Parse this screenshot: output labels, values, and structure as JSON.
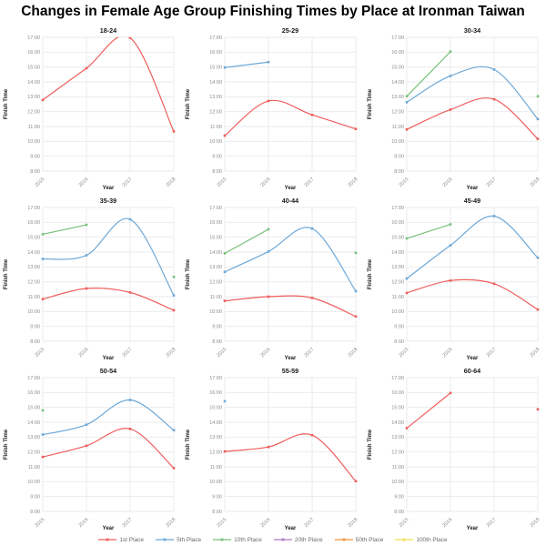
{
  "page_title": "Changes in Female Age Group Finishing Times by Place at Ironman Taiwan",
  "colors": {
    "grid": "#e9e9e9",
    "tick_text": "#8c8c8c",
    "axis_title_text": "#1a1a1a",
    "subplot_title_text": "#1a1a1a",
    "title_text": "#000000"
  },
  "legend": {
    "items": [
      {
        "name": "1st Place",
        "color": "#ed5e5c"
      },
      {
        "name": "5th Place",
        "color": "#6da8d8"
      },
      {
        "name": "10th Place",
        "color": "#77c17b"
      },
      {
        "name": "20th Place",
        "color": "#ad7ac4"
      },
      {
        "name": "50th Place",
        "color": "#f2953f"
      },
      {
        "name": "100th Place",
        "color": "#f0e24c"
      }
    ]
  },
  "chart_data": {
    "type": "line",
    "title": "Changes in Female Age Group Finishing Times by Place at Ironman Taiwan",
    "xlabel": "Year",
    "ylabel": "Finish Time",
    "x": [
      "2015",
      "2016",
      "2017",
      "2018"
    ],
    "y_ticks": [
      "17:00",
      "16:00",
      "15:00",
      "14:00",
      "13:00",
      "12:00",
      "11:00",
      "10:00",
      "9:00",
      "8:00"
    ],
    "y_range_hours": [
      8,
      17
    ],
    "grid": true,
    "legend_position": "bottom",
    "subplots": [
      {
        "title": "18-24",
        "series": [
          {
            "name": "1st Place",
            "points": {
              "2015": "12:47",
              "2016": "14:55",
              "2017": "16:58",
              "2018": "10:40"
            }
          }
        ]
      },
      {
        "title": "25-29",
        "series": [
          {
            "name": "1st Place",
            "points": {
              "2015": "10:23",
              "2016": "12:43",
              "2017": "11:47",
              "2018": "10:50"
            }
          },
          {
            "name": "5th Place",
            "points": {
              "2015": "14:58",
              "2016": "15:20"
            }
          }
        ]
      },
      {
        "title": "30-34",
        "series": [
          {
            "name": "1st Place",
            "points": {
              "2015": "10:48",
              "2016": "12:08",
              "2017": "12:50",
              "2018": "10:10"
            }
          },
          {
            "name": "5th Place",
            "points": {
              "2015": "12:38",
              "2016": "14:24",
              "2017": "14:50",
              "2018": "11:30"
            }
          },
          {
            "name": "10th Place",
            "points": {
              "2015": "13:02",
              "2016": "16:02",
              "2018": "13:02"
            }
          }
        ]
      },
      {
        "title": "35-39",
        "series": [
          {
            "name": "1st Place",
            "points": {
              "2015": "10:50",
              "2016": "11:33",
              "2017": "11:17",
              "2018": "10:05"
            }
          },
          {
            "name": "5th Place",
            "points": {
              "2015": "13:32",
              "2016": "13:47",
              "2017": "16:12",
              "2018": "11:05"
            }
          },
          {
            "name": "10th Place",
            "points": {
              "2015": "15:12",
              "2016": "15:50",
              "2018": "12:20"
            }
          }
        ]
      },
      {
        "title": "40-44",
        "series": [
          {
            "name": "1st Place",
            "points": {
              "2015": "10:43",
              "2016": "11:00",
              "2017": "10:55",
              "2018": "9:40"
            }
          },
          {
            "name": "5th Place",
            "points": {
              "2015": "12:40",
              "2016": "14:02",
              "2017": "15:35",
              "2018": "11:22"
            }
          },
          {
            "name": "10th Place",
            "points": {
              "2015": "13:55",
              "2016": "15:32",
              "2018": "13:57"
            }
          }
        ]
      },
      {
        "title": "45-49",
        "series": [
          {
            "name": "1st Place",
            "points": {
              "2015": "11:15",
              "2016": "12:05",
              "2017": "11:52",
              "2018": "10:08"
            }
          },
          {
            "name": "5th Place",
            "points": {
              "2015": "12:13",
              "2016": "14:27",
              "2017": "16:25",
              "2018": "13:37"
            }
          },
          {
            "name": "10th Place",
            "points": {
              "2015": "14:55",
              "2016": "15:52"
            }
          }
        ]
      },
      {
        "title": "50-54",
        "series": [
          {
            "name": "1st Place",
            "points": {
              "2015": "11:40",
              "2016": "12:25",
              "2017": "13:33",
              "2018": "10:55"
            }
          },
          {
            "name": "5th Place",
            "points": {
              "2015": "13:10",
              "2016": "13:50",
              "2017": "15:30",
              "2018": "13:28"
            }
          },
          {
            "name": "10th Place",
            "points": {
              "2015": "14:48"
            }
          }
        ]
      },
      {
        "title": "55-59",
        "series": [
          {
            "name": "1st Place",
            "points": {
              "2015": "12:02",
              "2016": "12:20",
              "2017": "13:08",
              "2018": "10:02"
            }
          },
          {
            "name": "5th Place",
            "points": {
              "2015": "15:25"
            }
          }
        ]
      },
      {
        "title": "60-64",
        "series": [
          {
            "name": "1st Place",
            "points": {
              "2015": "13:36",
              "2016": "15:58",
              "2018": "14:52"
            }
          }
        ]
      }
    ]
  }
}
